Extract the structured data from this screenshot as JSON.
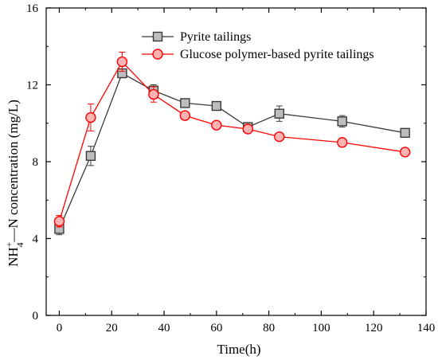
{
  "chart_data": {
    "type": "line",
    "xlabel": "Time(h)",
    "ylabel": {
      "base": "NH",
      "sub": "4",
      "sup": "+",
      "rest": "—N concentration  (mg/L)"
    },
    "xlim": [
      -5,
      140
    ],
    "ylim": [
      0,
      16
    ],
    "xticks": [
      0,
      20,
      40,
      60,
      80,
      100,
      120,
      140
    ],
    "yticks": [
      0,
      4,
      8,
      12,
      16
    ],
    "grid": false,
    "legend_position": "top-right",
    "series": [
      {
        "name": "Pyrite tailings",
        "color": "#3a3a3a",
        "marker": "square",
        "marker_fill": "#bdbdbd",
        "x": [
          0,
          12,
          24,
          36,
          48,
          60,
          72,
          84,
          108,
          132
        ],
        "y": [
          4.5,
          8.3,
          12.6,
          11.7,
          11.05,
          10.9,
          9.8,
          10.5,
          10.1,
          9.5
        ],
        "err": [
          0.3,
          0.5,
          0.2,
          0.3,
          0.15,
          0.15,
          0.2,
          0.4,
          0.3,
          0.2
        ]
      },
      {
        "name": "Glucose polymer-based pyrite tailings",
        "color": "#ff0000",
        "marker": "circle",
        "marker_fill": "#ffb3b3",
        "x": [
          0,
          12,
          24,
          36,
          48,
          60,
          72,
          84,
          108,
          132
        ],
        "y": [
          4.9,
          10.3,
          13.2,
          11.5,
          10.4,
          9.9,
          9.7,
          9.3,
          9.0,
          8.5
        ],
        "err": [
          0.3,
          0.7,
          0.5,
          0.4,
          0.1,
          0.1,
          0.1,
          0.1,
          0.1,
          0.1
        ]
      }
    ]
  }
}
